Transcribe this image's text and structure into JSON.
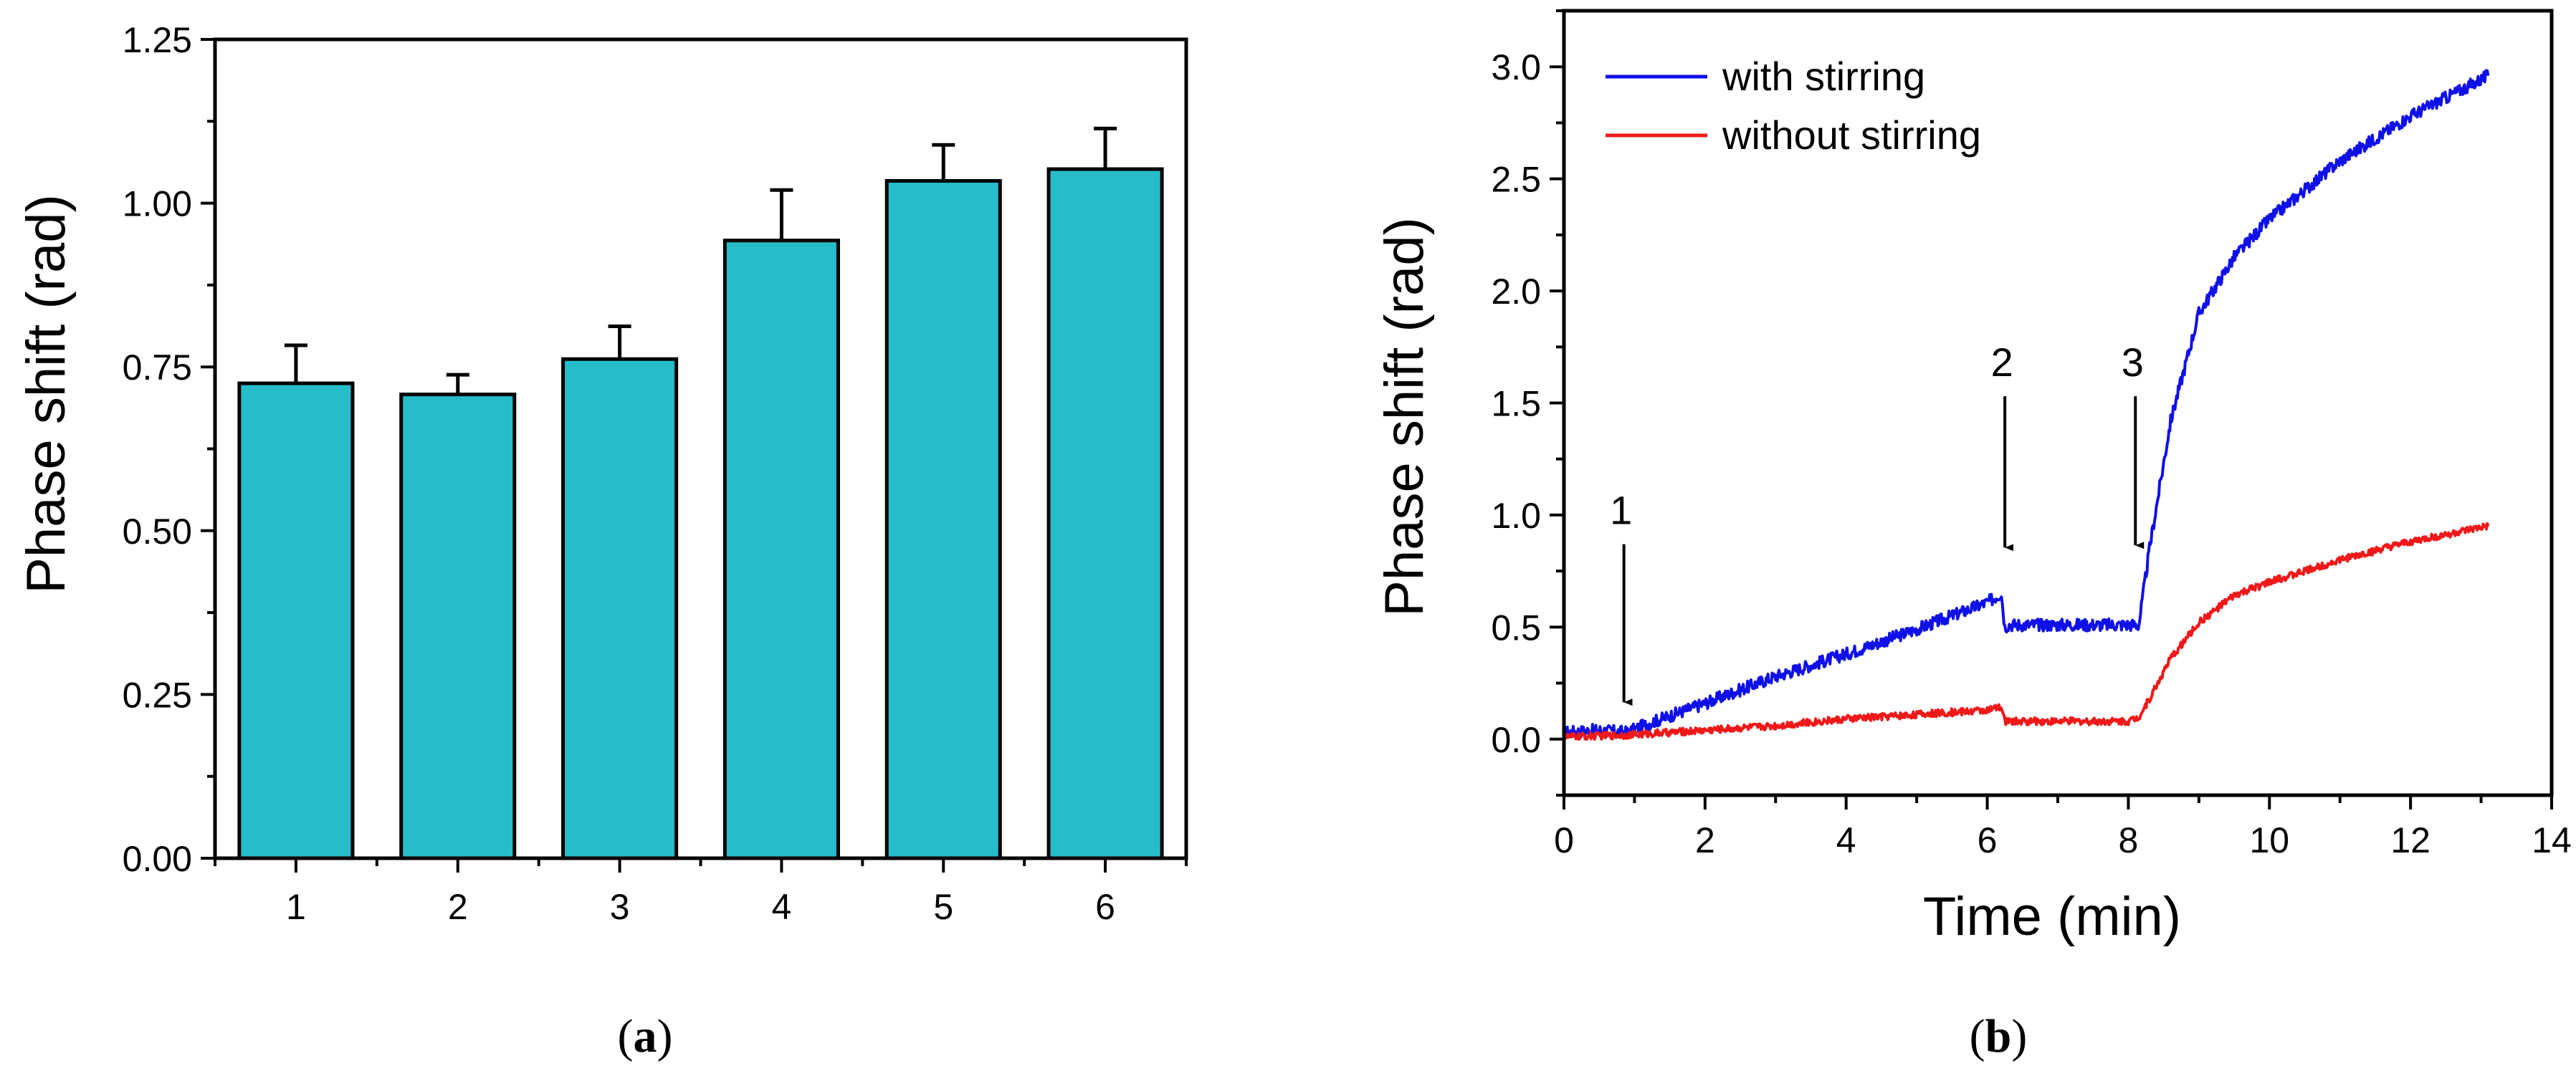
{
  "panel_labels": {
    "a": {
      "open": "(",
      "letter": "a",
      "close": ")"
    },
    "b": {
      "open": "(",
      "letter": "b",
      "close": ")"
    }
  },
  "colors": {
    "bar": "#27BCC9",
    "with_stirring": "#1010E8",
    "without_stirring": "#F01818"
  },
  "chart_data": [
    {
      "type": "bar",
      "title": "",
      "xlabel": "",
      "ylabel": "Phase shift (rad)",
      "categories": [
        "1",
        "2",
        "3",
        "4",
        "5",
        "6"
      ],
      "values": [
        0.725,
        0.708,
        0.762,
        0.943,
        1.034,
        1.052
      ],
      "errors": [
        0.058,
        0.03,
        0.05,
        0.077,
        0.055,
        0.062
      ],
      "ylim": [
        0,
        1.25
      ],
      "yticks": [
        0,
        0.25,
        0.5,
        0.75,
        1.0,
        1.25
      ],
      "ytick_labels": [
        "0.00",
        "0.25",
        "0.50",
        "0.75",
        "1.00",
        "1.25"
      ]
    },
    {
      "type": "line",
      "title": "",
      "xlabel": "Time (min)",
      "ylabel": "Phase shift (rad)",
      "xlim": [
        0,
        14
      ],
      "ylim": [
        -0.25,
        3.25
      ],
      "xticks": [
        0,
        2,
        4,
        6,
        8,
        10,
        12,
        14
      ],
      "xtick_labels": [
        "0",
        "2",
        "4",
        "6",
        "8",
        "10",
        "12",
        "14"
      ],
      "yticks": [
        0,
        0.5,
        1.0,
        1.5,
        2.0,
        2.5,
        3.0
      ],
      "ytick_labels": [
        "0.0",
        "0.5",
        "1.0",
        "1.5",
        "2.0",
        "2.5",
        "3.0"
      ],
      "legend_position": "top-left",
      "series": [
        {
          "name": "with stirring",
          "x": [
            0,
            0.5,
            0.9,
            1.2,
            2,
            3,
            4,
            5,
            6,
            6.2,
            6.25,
            6.3,
            7,
            8,
            8.15,
            8.3,
            8.6,
            9,
            9.5,
            10,
            11,
            12,
            13.1
          ],
          "y": [
            0.03,
            0.04,
            0.03,
            0.07,
            0.16,
            0.28,
            0.38,
            0.49,
            0.61,
            0.65,
            0.5,
            0.51,
            0.51,
            0.51,
            0.51,
            0.85,
            1.42,
            1.9,
            2.15,
            2.32,
            2.58,
            2.78,
            2.96
          ]
        },
        {
          "name": "without stirring",
          "x": [
            0,
            1,
            2,
            3,
            4,
            5,
            6,
            6.2,
            6.25,
            6.3,
            7,
            8,
            8.15,
            8.3,
            8.6,
            9,
            9.5,
            10,
            11,
            12,
            13.1
          ],
          "y": [
            0.01,
            0.02,
            0.04,
            0.06,
            0.09,
            0.11,
            0.13,
            0.14,
            0.08,
            0.08,
            0.08,
            0.08,
            0.1,
            0.18,
            0.36,
            0.52,
            0.64,
            0.7,
            0.8,
            0.88,
            0.95
          ]
        }
      ],
      "annotations": [
        {
          "label": "1",
          "x": 0.85,
          "y_tip": 0.12,
          "y_top": 0.87
        },
        {
          "label": "2",
          "x": 6.25,
          "y_tip": 0.81,
          "y_top": 1.53
        },
        {
          "label": "3",
          "x": 8.1,
          "y_tip": 0.82,
          "y_top": 1.53
        }
      ]
    }
  ]
}
